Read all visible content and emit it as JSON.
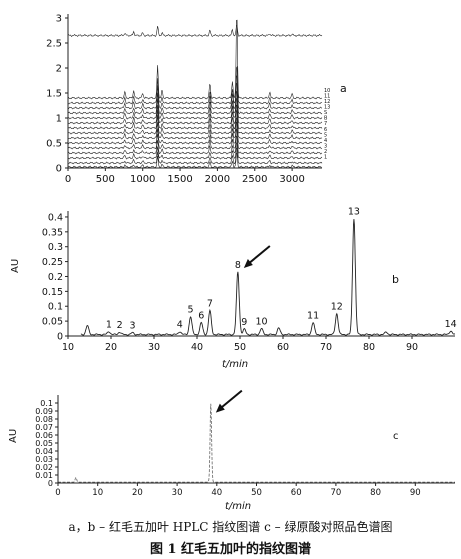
{
  "chart_data": [
    {
      "panel": "a",
      "type": "line",
      "annotation": "a",
      "xlim": [
        0,
        3400
      ],
      "ylim": [
        0,
        3
      ],
      "xticks": [
        "0",
        "500",
        "1000",
        "1500",
        "2000",
        "2500",
        "3000"
      ],
      "yticks": [
        "0",
        "0.5",
        "1",
        "1.5",
        "2",
        "2.5",
        "3"
      ],
      "peaks_x": [
        760,
        880,
        1000,
        1200,
        1260,
        1900,
        2200,
        2260,
        2700,
        3000
      ],
      "series": [
        {
          "offset": 2.65,
          "heights": [
            0.05,
            0.08,
            0.05,
            0.18,
            0.05,
            0.1,
            0.12,
            0.22,
            0.04,
            0.03
          ]
        },
        {
          "offset": 1.4,
          "heights": [
            0.12,
            0.15,
            0.1,
            0.65,
            0.15,
            0.3,
            0.35,
            1.75,
            0.12,
            0.08
          ]
        },
        {
          "offset": 1.3,
          "heights": [
            0.1,
            0.12,
            0.08,
            0.5,
            0.12,
            0.25,
            0.28,
            0.8,
            0.1,
            0.07
          ]
        },
        {
          "offset": 1.2,
          "heights": [
            0.1,
            0.12,
            0.08,
            0.45,
            0.12,
            0.25,
            0.28,
            0.7,
            0.1,
            0.07
          ]
        },
        {
          "offset": 1.1,
          "heights": [
            0.09,
            0.11,
            0.07,
            0.4,
            0.1,
            0.22,
            0.25,
            0.65,
            0.09,
            0.06
          ]
        },
        {
          "offset": 1.0,
          "heights": [
            0.09,
            0.11,
            0.07,
            0.4,
            0.1,
            0.22,
            0.25,
            0.6,
            0.09,
            0.06
          ]
        },
        {
          "offset": 0.9,
          "heights": [
            0.08,
            0.1,
            0.07,
            0.38,
            0.1,
            0.2,
            0.22,
            0.55,
            0.08,
            0.06
          ]
        },
        {
          "offset": 0.8,
          "heights": [
            0.08,
            0.1,
            0.06,
            0.36,
            0.09,
            0.2,
            0.22,
            0.5,
            0.08,
            0.05
          ]
        },
        {
          "offset": 0.7,
          "heights": [
            0.07,
            0.09,
            0.06,
            0.34,
            0.09,
            0.18,
            0.2,
            0.5,
            0.07,
            0.05
          ]
        },
        {
          "offset": 0.6,
          "heights": [
            0.07,
            0.09,
            0.06,
            0.32,
            0.08,
            0.18,
            0.2,
            0.45,
            0.07,
            0.05
          ]
        },
        {
          "offset": 0.5,
          "heights": [
            0.06,
            0.08,
            0.05,
            0.3,
            0.08,
            0.16,
            0.18,
            0.45,
            0.06,
            0.04
          ]
        },
        {
          "offset": 0.4,
          "heights": [
            0.06,
            0.08,
            0.05,
            0.28,
            0.07,
            0.15,
            0.17,
            0.4,
            0.06,
            0.04
          ]
        },
        {
          "offset": 0.3,
          "heights": [
            0.05,
            0.07,
            0.05,
            0.26,
            0.07,
            0.14,
            0.16,
            0.38,
            0.05,
            0.04
          ]
        },
        {
          "offset": 0.2,
          "heights": [
            0.05,
            0.07,
            0.04,
            0.24,
            0.06,
            0.13,
            0.15,
            0.35,
            0.05,
            0.03
          ]
        },
        {
          "offset": 0.1,
          "heights": [
            0.04,
            0.06,
            0.04,
            0.22,
            0.06,
            0.12,
            0.14,
            0.32,
            0.05,
            0.03
          ]
        },
        {
          "offset": 0.02,
          "heights": [
            0.04,
            0.05,
            0.04,
            0.2,
            0.05,
            0.1,
            0.12,
            0.3,
            0.04,
            0.03
          ]
        }
      ],
      "legend_right_labels": [
        "10",
        "11",
        "12",
        "13",
        "S",
        "B",
        "7",
        "6",
        "5",
        "4",
        "3",
        "2",
        "1"
      ]
    },
    {
      "panel": "b",
      "type": "line",
      "annotation": "b",
      "xlabel": "t/min",
      "ylabel": "AU",
      "xlim": [
        10,
        100
      ],
      "ylim": [
        0,
        0.42
      ],
      "xticks": [
        "10",
        "20",
        "30",
        "40",
        "50",
        "60",
        "70",
        "80",
        "90"
      ],
      "yticks": [
        "0",
        "0.05",
        "0.1",
        "0.15",
        "0.2",
        "0.25",
        "0.3",
        "0.35",
        "0.4"
      ],
      "baseline": 0.005,
      "peaks": [
        {
          "x": 14.5,
          "h": 0.03,
          "label": ""
        },
        {
          "x": 19.5,
          "h": 0.01,
          "label": "1"
        },
        {
          "x": 22,
          "h": 0.008,
          "label": "2"
        },
        {
          "x": 25,
          "h": 0.006,
          "label": "3"
        },
        {
          "x": 36,
          "h": 0.01,
          "label": "4"
        },
        {
          "x": 38.5,
          "h": 0.06,
          "label": "5"
        },
        {
          "x": 41,
          "h": 0.04,
          "label": "6"
        },
        {
          "x": 43,
          "h": 0.08,
          "label": "7"
        },
        {
          "x": 49.5,
          "h": 0.21,
          "label": "8"
        },
        {
          "x": 51,
          "h": 0.018,
          "label": "9"
        },
        {
          "x": 55,
          "h": 0.02,
          "label": "10"
        },
        {
          "x": 59,
          "h": 0.022,
          "label": ""
        },
        {
          "x": 67,
          "h": 0.04,
          "label": "11"
        },
        {
          "x": 72.5,
          "h": 0.07,
          "label": "12"
        },
        {
          "x": 76.5,
          "h": 0.39,
          "label": "13"
        },
        {
          "x": 84,
          "h": 0.008,
          "label": ""
        },
        {
          "x": 99,
          "h": 0.012,
          "label": "14"
        }
      ],
      "arrow_target_label": "8"
    },
    {
      "panel": "c",
      "type": "line",
      "annotation": "c",
      "xlabel": "t/min",
      "ylabel": "AU",
      "xlim": [
        0,
        100
      ],
      "ylim": [
        0,
        0.105
      ],
      "xticks": [
        "0",
        "10",
        "20",
        "30",
        "40",
        "50",
        "60",
        "70",
        "80",
        "90"
      ],
      "yticks": [
        "0",
        "0.01",
        "0.02",
        "0.03",
        "0.04",
        "0.05",
        "0.06",
        "0.07",
        "0.08",
        "0.09",
        "0.1"
      ],
      "baseline": 0.001,
      "peaks": [
        {
          "x": 4.5,
          "h": 0.006
        },
        {
          "x": 38.5,
          "h": 0.098
        }
      ]
    }
  ],
  "caption": {
    "line": "a，b – 红毛五加叶 HPLC 指纹图谱        c – 绿原酸对照品色谱图",
    "title": "图 1    红毛五加叶的指纹图谱"
  }
}
